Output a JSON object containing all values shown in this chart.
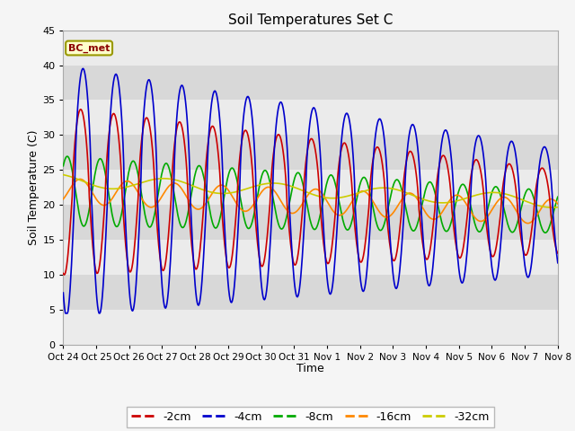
{
  "title": "Soil Temperatures Set C",
  "xlabel": "Time",
  "ylabel": "Soil Temperature (C)",
  "ylim": [
    0,
    45
  ],
  "yticks": [
    0,
    5,
    10,
    15,
    20,
    25,
    30,
    35,
    40,
    45
  ],
  "xtick_labels": [
    "Oct 24",
    "Oct 25",
    "Oct 26",
    "Oct 27",
    "Oct 28",
    "Oct 29",
    "Oct 30",
    "Oct 31",
    "Nov 1",
    "Nov 2",
    "Nov 3",
    "Nov 4",
    "Nov 5",
    "Nov 6",
    "Nov 7",
    "Nov 8"
  ],
  "annotation": "BC_met",
  "colors": {
    "-2cm": "#cc0000",
    "-4cm": "#0000cc",
    "-8cm": "#00aa00",
    "-16cm": "#ff8800",
    "-32cm": "#cccc00"
  },
  "plot_bg": "#e8e8e8",
  "fig_bg": "#f5f5f5",
  "band_light": "#ebebeb",
  "band_dark": "#d8d8d8"
}
